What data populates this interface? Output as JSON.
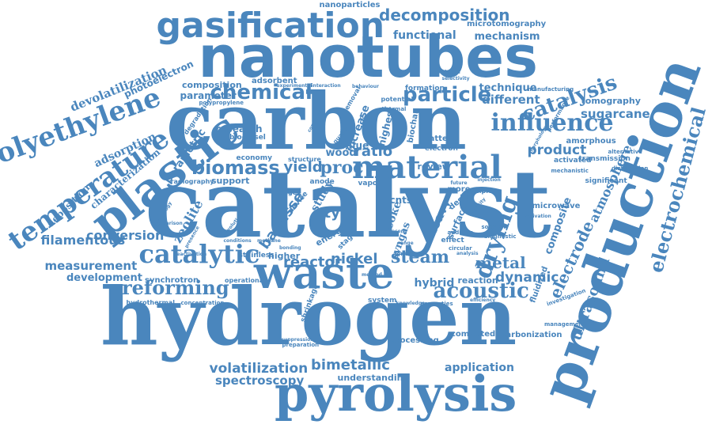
{
  "color": "#4a86bd",
  "words": [
    {
      "id": "catalyst",
      "text": "catalyst"
    },
    {
      "id": "hydrogen",
      "text": "hydrogen"
    },
    {
      "id": "carbon",
      "text": "carbon"
    },
    {
      "id": "nanotubes",
      "text": "nanotubes"
    },
    {
      "id": "production",
      "text": "production"
    },
    {
      "id": "waste",
      "text": "waste"
    },
    {
      "id": "pyrolysis",
      "text": "pyrolysis"
    },
    {
      "id": "plastic",
      "text": "plastic"
    },
    {
      "id": "gasification",
      "text": "gasification"
    },
    {
      "id": "temperature",
      "text": "temperature"
    },
    {
      "id": "polyethylene",
      "text": "polyethylene"
    },
    {
      "id": "material",
      "text": "material"
    },
    {
      "id": "catalytic",
      "text": "catalytic"
    },
    {
      "id": "biomass",
      "text": "biomass"
    },
    {
      "id": "chemical",
      "text": "chemical"
    },
    {
      "id": "particle",
      "text": "particle"
    },
    {
      "id": "influence",
      "text": "influence"
    },
    {
      "id": "catalysis",
      "text": "catalysis"
    },
    {
      "id": "electrochemical",
      "text": "electrochemical"
    },
    {
      "id": "reforming",
      "text": "reforming"
    },
    {
      "id": "decomposition",
      "text": "decomposition"
    },
    {
      "id": "acoustic",
      "text": "acoustic"
    },
    {
      "id": "drying",
      "text": "drying"
    },
    {
      "id": "conversion",
      "text": "conversion"
    },
    {
      "id": "filamentous",
      "text": "filamentous"
    },
    {
      "id": "measurement",
      "text": "measurement"
    },
    {
      "id": "development",
      "text": "development"
    },
    {
      "id": "volatilization",
      "text": "volatilization"
    },
    {
      "id": "bimetallic",
      "text": "bimetallic"
    },
    {
      "id": "spectroscopy",
      "text": "spectroscopy"
    },
    {
      "id": "application",
      "text": "application"
    },
    {
      "id": "understanding",
      "text": "understanding"
    },
    {
      "id": "reactor",
      "text": "reactor"
    },
    {
      "id": "nickel",
      "text": "nickel"
    },
    {
      "id": "steam",
      "text": "steam"
    },
    {
      "id": "metal",
      "text": "metal"
    },
    {
      "id": "dynamic",
      "text": "dynamic"
    },
    {
      "id": "hybrid",
      "text": "hybrid"
    },
    {
      "id": "electrode",
      "text": "electrode"
    },
    {
      "id": "ultrasound",
      "text": "ultrasound"
    },
    {
      "id": "atmosphere",
      "text": "atmosphere"
    },
    {
      "id": "composite",
      "text": "composite"
    },
    {
      "id": "tomography",
      "text": "tomography"
    },
    {
      "id": "sugarcane",
      "text": "sugarcane"
    },
    {
      "id": "product",
      "text": "product"
    },
    {
      "id": "different",
      "text": "different"
    },
    {
      "id": "technique",
      "text": "technique"
    },
    {
      "id": "functional",
      "text": "functional"
    },
    {
      "id": "mechanism",
      "text": "mechanism"
    },
    {
      "id": "nanoparticles",
      "text": "nanoparticles"
    },
    {
      "id": "microtomography",
      "text": "microtomography"
    },
    {
      "id": "devolatilization",
      "text": "devolatilization"
    },
    {
      "id": "photoelectron",
      "text": "photoelectron"
    },
    {
      "id": "adsorption",
      "text": "adsorption"
    },
    {
      "id": "characterization",
      "text": "characterization"
    },
    {
      "id": "parametric",
      "text": "parametric"
    },
    {
      "id": "deposition",
      "text": "deposition"
    },
    {
      "id": "zeolite",
      "text": "zeolite"
    },
    {
      "id": "bagasse",
      "text": "bagasse"
    },
    {
      "id": "yield",
      "text": "yield"
    },
    {
      "id": "proc",
      "text": "proc"
    },
    {
      "id": "tyre",
      "text": "tyre"
    },
    {
      "id": "wood",
      "text": "wood"
    },
    {
      "id": "ratio",
      "text": "ratio"
    },
    {
      "id": "composition",
      "text": "composition"
    },
    {
      "id": "parameter",
      "text": "parameter"
    },
    {
      "id": "adsorbent",
      "text": "adsorbent"
    },
    {
      "id": "research",
      "text": "research"
    },
    {
      "id": "biodiesel",
      "text": "biodiesel"
    },
    {
      "id": "radiography",
      "text": "radiography"
    },
    {
      "id": "support",
      "text": "support"
    },
    {
      "id": "synchrotron",
      "text": "synchrotron"
    },
    {
      "id": "processing",
      "text": "processing"
    },
    {
      "id": "higher",
      "text": "higher"
    },
    {
      "id": "review",
      "text": "review"
    },
    {
      "id": "microwave",
      "text": "microwave"
    },
    {
      "id": "amorphous",
      "text": "amorphous"
    },
    {
      "id": "activated",
      "text": "activated"
    },
    {
      "id": "transmission",
      "text": "transmission"
    },
    {
      "id": "significant",
      "text": "significant"
    },
    {
      "id": "carbonization",
      "text": "carbonization"
    },
    {
      "id": "computed",
      "text": "computed"
    },
    {
      "id": "fluidized",
      "text": "fluidized"
    },
    {
      "id": "reaction",
      "text": "reaction"
    },
    {
      "id": "stainless",
      "text": "stainless"
    },
    {
      "id": "hydrothermal",
      "text": "hydrothermal"
    },
    {
      "id": "concentration",
      "text": "concentration"
    },
    {
      "id": "operational",
      "text": "operational"
    },
    {
      "id": "formation",
      "text": "formation"
    },
    {
      "id": "potential",
      "text": "potential"
    },
    {
      "id": "value",
      "text": "value"
    },
    {
      "id": "increase",
      "text": "increase"
    },
    {
      "id": "highest",
      "text": "highest"
    },
    {
      "id": "biochar",
      "text": "biochar"
    },
    {
      "id": "batterie",
      "text": "batterie"
    },
    {
      "id": "anode",
      "text": "anode"
    },
    {
      "id": "study",
      "text": "study"
    },
    {
      "id": "cnts",
      "text": "cnts"
    },
    {
      "id": "coke",
      "text": "coke"
    },
    {
      "id": "syngas",
      "text": "syngas"
    },
    {
      "id": "heavy",
      "text": "heavy"
    },
    {
      "id": "surface",
      "text": "surface"
    },
    {
      "id": "electron",
      "text": "electron"
    },
    {
      "id": "effect",
      "text": "effect"
    },
    {
      "id": "device",
      "text": "device"
    },
    {
      "id": "economy",
      "text": "economy"
    },
    {
      "id": "structure",
      "text": "structure"
    },
    {
      "id": "shrinkage",
      "text": "shrinkage"
    },
    {
      "id": "removal",
      "text": "removal"
    },
    {
      "id": "quality",
      "text": "quality"
    },
    {
      "id": "energy",
      "text": "energy"
    },
    {
      "id": "design",
      "text": "design"
    },
    {
      "id": "more",
      "text": "more"
    },
    {
      "id": "sample",
      "text": "sample"
    },
    {
      "id": "system",
      "text": "system"
    },
    {
      "id": "change",
      "text": "change"
    },
    {
      "id": "vapor",
      "text": "vapor"
    },
    {
      "id": "stage",
      "text": "stage"
    },
    {
      "id": "degradation",
      "text": "degradation"
    },
    {
      "id": "polypropylene",
      "text": "polypropylene"
    },
    {
      "id": "manufacturing",
      "text": "manufacturing"
    },
    {
      "id": "performance",
      "text": "performance"
    },
    {
      "id": "alternative",
      "text": "alternative"
    },
    {
      "id": "distribution",
      "text": "distribution"
    },
    {
      "id": "mechanistic",
      "text": "mechanistic"
    },
    {
      "id": "investigation",
      "text": "investigation"
    },
    {
      "id": "management",
      "text": "management"
    },
    {
      "id": "properties",
      "text": "properties"
    },
    {
      "id": "preparation",
      "text": "preparation"
    },
    {
      "id": "suppression",
      "text": "suppression"
    },
    {
      "id": "format",
      "text": "format"
    },
    {
      "id": "range",
      "text": "range"
    },
    {
      "id": "circular",
      "text": "circular"
    },
    {
      "id": "addition",
      "text": "addition"
    },
    {
      "id": "sorption",
      "text": "sorption"
    },
    {
      "id": "diagnostic",
      "text": "diagnostic"
    },
    {
      "id": "deactivation",
      "text": "deactivation"
    },
    {
      "id": "technology",
      "text": "technology"
    },
    {
      "id": "presence",
      "text": "presence"
    },
    {
      "id": "comparison",
      "text": "comparison"
    },
    {
      "id": "recent",
      "text": "recent"
    },
    {
      "id": "future",
      "text": "future"
    },
    {
      "id": "thermal",
      "text": "thermal"
    },
    {
      "id": "bonding",
      "text": "bonding"
    },
    {
      "id": "analysis",
      "text": "analysis"
    },
    {
      "id": "injection",
      "text": "injection"
    },
    {
      "id": "activation",
      "text": "activation"
    },
    {
      "id": "capacity",
      "text": "capacity"
    },
    {
      "id": "evolution",
      "text": "evolution"
    },
    {
      "id": "process",
      "text": "process"
    },
    {
      "id": "conditions",
      "text": "conditions"
    },
    {
      "id": "efficiency",
      "text": "efficiency"
    },
    {
      "id": "methane",
      "text": "methane"
    },
    {
      "id": "oxidation",
      "text": "oxidation"
    },
    {
      "id": "selectivity",
      "text": "selectivity"
    },
    {
      "id": "method",
      "text": "method"
    },
    {
      "id": "behaviour",
      "text": "behaviour"
    },
    {
      "id": "experimental",
      "text": "experimental"
    },
    {
      "id": "interaction",
      "text": "interaction"
    },
    {
      "id": "combustion",
      "text": "combustion"
    },
    {
      "id": "fuel",
      "text": "fuel"
    },
    {
      "id": "knowledge",
      "text": "knowledge"
    },
    {
      "id": "morphology",
      "text": "morphology"
    }
  ]
}
